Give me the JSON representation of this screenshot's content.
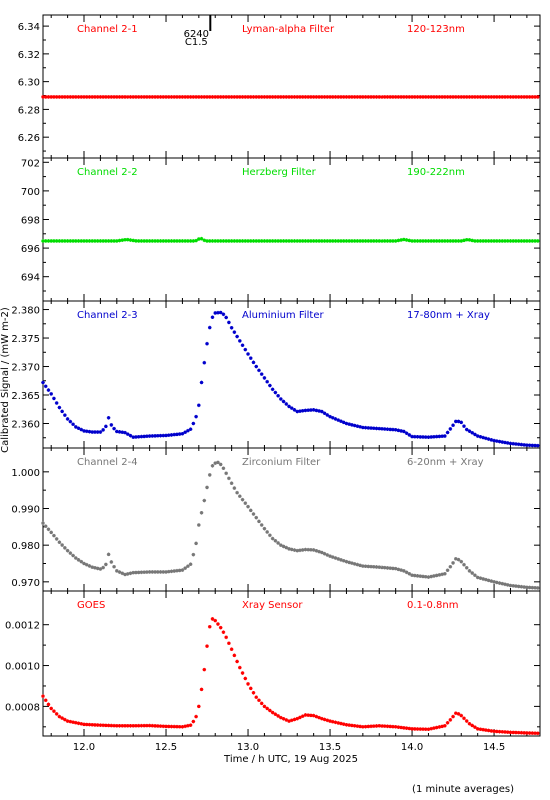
{
  "figure": {
    "xlabel": "Time / h UTC, 19 Aug 2025",
    "ylabel": "Calibrated Signal / (mW m-2)",
    "footnote": "(1 minute averages)",
    "xlim": [
      11.75,
      14.78
    ],
    "xticks": [
      12.0,
      12.5,
      13.0,
      13.5,
      14.0,
      14.5
    ],
    "xtick_labels": [
      "12.0",
      "12.5",
      "13.0",
      "13.5",
      "14.0",
      "14.5"
    ],
    "flare_marker": {
      "x": 12.77,
      "id": "6240",
      "cls": "C1.5"
    }
  },
  "chart_data": [
    {
      "type": "scatter",
      "channel": "Channel 2-1",
      "filter": "Lyman-alpha Filter",
      "band": "120-123nm",
      "color": "#ff0000",
      "ylim": [
        6.245,
        6.348
      ],
      "yticks": [
        6.26,
        6.28,
        6.3,
        6.32,
        6.34
      ],
      "ytick_labels": [
        "6.26",
        "6.28",
        "6.30",
        "6.32",
        "6.34"
      ],
      "profile": [
        [
          11.75,
          6.289
        ],
        [
          14.78,
          6.289
        ]
      ]
    },
    {
      "type": "scatter",
      "channel": "Channel 2-2",
      "filter": "Herzberg Filter",
      "band": "190-222nm",
      "color": "#00dd00",
      "ylim": [
        692.3,
        702.3
      ],
      "yticks": [
        694,
        696,
        698,
        700,
        702
      ],
      "ytick_labels": [
        "694",
        "696",
        "698",
        "700",
        "702"
      ],
      "profile": [
        [
          11.75,
          696.5
        ],
        [
          12.2,
          696.5
        ],
        [
          12.26,
          696.6
        ],
        [
          12.32,
          696.5
        ],
        [
          12.68,
          696.5
        ],
        [
          12.71,
          696.7
        ],
        [
          12.74,
          696.5
        ],
        [
          13.9,
          696.5
        ],
        [
          13.95,
          696.6
        ],
        [
          14.0,
          696.5
        ],
        [
          14.3,
          696.5
        ],
        [
          14.34,
          696.6
        ],
        [
          14.38,
          696.5
        ],
        [
          14.78,
          696.5
        ]
      ]
    },
    {
      "type": "scatter",
      "channel": "Channel 2-3",
      "filter": "Aluminium Filter",
      "band": "17-80nm + Xray",
      "color": "#0000cc",
      "ylim": [
        2.3557,
        2.3815
      ],
      "yticks": [
        2.36,
        2.365,
        2.37,
        2.375,
        2.38
      ],
      "ytick_labels": [
        "2.360",
        "2.365",
        "2.370",
        "2.375",
        "2.380"
      ],
      "profile": [
        [
          11.75,
          2.3672
        ],
        [
          11.8,
          2.3652
        ],
        [
          11.85,
          2.3628
        ],
        [
          11.9,
          2.3608
        ],
        [
          11.95,
          2.3594
        ],
        [
          12.0,
          2.3587
        ],
        [
          12.05,
          2.3585
        ],
        [
          12.1,
          2.3585
        ],
        [
          12.13,
          2.3592
        ],
        [
          12.15,
          2.361
        ],
        [
          12.17,
          2.3595
        ],
        [
          12.2,
          2.3586
        ],
        [
          12.25,
          2.3584
        ],
        [
          12.3,
          2.3576
        ],
        [
          12.4,
          2.3578
        ],
        [
          12.5,
          2.3579
        ],
        [
          12.6,
          2.3582
        ],
        [
          12.65,
          2.359
        ],
        [
          12.68,
          2.3608
        ],
        [
          12.7,
          2.3632
        ],
        [
          12.72,
          2.368
        ],
        [
          12.74,
          2.372
        ],
        [
          12.76,
          2.376
        ],
        [
          12.78,
          2.3785
        ],
        [
          12.8,
          2.3794
        ],
        [
          12.84,
          2.3795
        ],
        [
          12.87,
          2.3785
        ],
        [
          12.9,
          2.3768
        ],
        [
          12.95,
          2.3745
        ],
        [
          13.0,
          2.3722
        ],
        [
          13.05,
          2.37
        ],
        [
          13.1,
          2.368
        ],
        [
          13.15,
          2.366
        ],
        [
          13.2,
          2.3643
        ],
        [
          13.25,
          2.363
        ],
        [
          13.3,
          2.3621
        ],
        [
          13.35,
          2.3623
        ],
        [
          13.4,
          2.3624
        ],
        [
          13.45,
          2.3621
        ],
        [
          13.5,
          2.3612
        ],
        [
          13.6,
          2.36
        ],
        [
          13.7,
          2.3593
        ],
        [
          13.8,
          2.3591
        ],
        [
          13.9,
          2.3589
        ],
        [
          13.95,
          2.3586
        ],
        [
          14.0,
          2.3577
        ],
        [
          14.1,
          2.3576
        ],
        [
          14.2,
          2.3578
        ],
        [
          14.24,
          2.3593
        ],
        [
          14.27,
          2.3605
        ],
        [
          14.3,
          2.3602
        ],
        [
          14.33,
          2.359
        ],
        [
          14.4,
          2.3578
        ],
        [
          14.5,
          2.357
        ],
        [
          14.6,
          2.3565
        ],
        [
          14.7,
          2.3562
        ],
        [
          14.78,
          2.3561
        ]
      ]
    },
    {
      "type": "scatter",
      "channel": "Channel 2-4",
      "filter": "Zirconium Filter",
      "band": "6-20nm + Xray",
      "color": "#777777",
      "ylim": [
        0.9675,
        1.0065
      ],
      "yticks": [
        0.97,
        0.98,
        0.99,
        1.0
      ],
      "ytick_labels": [
        "0.970",
        "0.980",
        "0.990",
        "1.000"
      ],
      "profile": [
        [
          11.75,
          0.986
        ],
        [
          11.8,
          0.9835
        ],
        [
          11.85,
          0.9808
        ],
        [
          11.9,
          0.9785
        ],
        [
          11.95,
          0.9765
        ],
        [
          12.0,
          0.975
        ],
        [
          12.05,
          0.974
        ],
        [
          12.1,
          0.9735
        ],
        [
          12.13,
          0.9742
        ],
        [
          12.15,
          0.9775
        ],
        [
          12.17,
          0.975
        ],
        [
          12.2,
          0.973
        ],
        [
          12.25,
          0.972
        ],
        [
          12.3,
          0.9725
        ],
        [
          12.4,
          0.9727
        ],
        [
          12.5,
          0.9727
        ],
        [
          12.6,
          0.9732
        ],
        [
          12.65,
          0.9748
        ],
        [
          12.68,
          0.9795
        ],
        [
          12.7,
          0.9855
        ],
        [
          12.72,
          0.9895
        ],
        [
          12.74,
          0.9935
        ],
        [
          12.76,
          0.998
        ],
        [
          12.78,
          1.0015
        ],
        [
          12.81,
          1.0028
        ],
        [
          12.84,
          1.0018
        ],
        [
          12.88,
          0.9985
        ],
        [
          12.93,
          0.9945
        ],
        [
          13.0,
          0.9905
        ],
        [
          13.05,
          0.9875
        ],
        [
          13.1,
          0.9845
        ],
        [
          13.15,
          0.9818
        ],
        [
          13.2,
          0.98
        ],
        [
          13.25,
          0.979
        ],
        [
          13.3,
          0.9785
        ],
        [
          13.35,
          0.9788
        ],
        [
          13.4,
          0.9787
        ],
        [
          13.45,
          0.978
        ],
        [
          13.5,
          0.977
        ],
        [
          13.6,
          0.9755
        ],
        [
          13.7,
          0.9743
        ],
        [
          13.8,
          0.974
        ],
        [
          13.9,
          0.9736
        ],
        [
          13.95,
          0.973
        ],
        [
          14.0,
          0.9718
        ],
        [
          14.1,
          0.9713
        ],
        [
          14.2,
          0.9722
        ],
        [
          14.24,
          0.9745
        ],
        [
          14.27,
          0.9765
        ],
        [
          14.3,
          0.9755
        ],
        [
          14.35,
          0.973
        ],
        [
          14.4,
          0.9712
        ],
        [
          14.5,
          0.97
        ],
        [
          14.6,
          0.969
        ],
        [
          14.7,
          0.9685
        ],
        [
          14.78,
          0.9683
        ]
      ]
    },
    {
      "type": "scatter",
      "channel": "GOES",
      "filter": "Xray Sensor",
      "band": "0.1-0.8nm",
      "color": "#ff0000",
      "ylim": [
        0.000655,
        0.001365
      ],
      "yticks": [
        0.0008,
        0.001,
        0.0012
      ],
      "ytick_labels": [
        "0.0008",
        "0.0010",
        "0.0012"
      ],
      "profile": [
        [
          11.75,
          0.00085
        ],
        [
          11.8,
          0.00079
        ],
        [
          11.85,
          0.00075
        ],
        [
          11.9,
          0.000728
        ],
        [
          12.0,
          0.000712
        ],
        [
          12.1,
          0.000708
        ],
        [
          12.2,
          0.000705
        ],
        [
          12.3,
          0.000705
        ],
        [
          12.4,
          0.000706
        ],
        [
          12.5,
          0.000702
        ],
        [
          12.6,
          0.0007
        ],
        [
          12.65,
          0.000708
        ],
        [
          12.68,
          0.00074
        ],
        [
          12.7,
          0.0008
        ],
        [
          12.72,
          0.0009
        ],
        [
          12.74,
          0.00102
        ],
        [
          12.76,
          0.00117
        ],
        [
          12.78,
          0.00123
        ],
        [
          12.8,
          0.00122
        ],
        [
          12.83,
          0.00119
        ],
        [
          12.86,
          0.00115
        ],
        [
          12.9,
          0.00108
        ],
        [
          12.95,
          0.00099
        ],
        [
          13.0,
          0.00091
        ],
        [
          13.05,
          0.000845
        ],
        [
          13.1,
          0.0008
        ],
        [
          13.15,
          0.00077
        ],
        [
          13.2,
          0.000745
        ],
        [
          13.25,
          0.000728
        ],
        [
          13.3,
          0.00074
        ],
        [
          13.35,
          0.000758
        ],
        [
          13.4,
          0.000755
        ],
        [
          13.45,
          0.00074
        ],
        [
          13.5,
          0.000728
        ],
        [
          13.6,
          0.00071
        ],
        [
          13.7,
          0.0007
        ],
        [
          13.8,
          0.000705
        ],
        [
          13.9,
          0.0007
        ],
        [
          14.0,
          0.00069
        ],
        [
          14.1,
          0.000688
        ],
        [
          14.2,
          0.000705
        ],
        [
          14.24,
          0.00074
        ],
        [
          14.27,
          0.00077
        ],
        [
          14.3,
          0.000755
        ],
        [
          14.35,
          0.000715
        ],
        [
          14.4,
          0.00069
        ],
        [
          14.5,
          0.000678
        ],
        [
          14.6,
          0.000673
        ],
        [
          14.7,
          0.00067
        ],
        [
          14.78,
          0.000668
        ]
      ]
    }
  ]
}
